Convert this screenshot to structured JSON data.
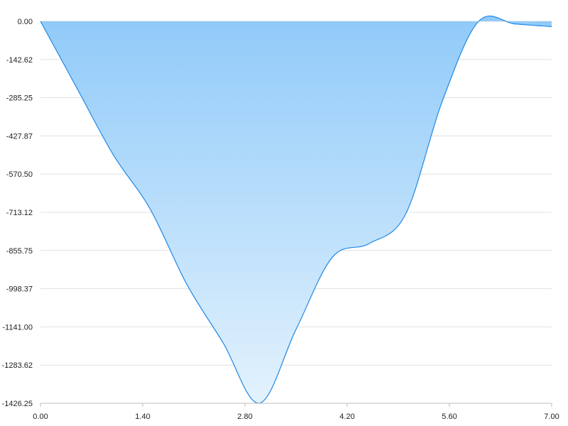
{
  "chart_data": {
    "type": "area",
    "title": "",
    "xlabel": "",
    "ylabel": "",
    "xlim": [
      0,
      7
    ],
    "ylim": [
      -1426.25,
      0
    ],
    "x_ticks": [
      "0.00",
      "1.40",
      "2.80",
      "4.20",
      "5.60",
      "7.00"
    ],
    "y_ticks": [
      "0.00",
      "-142.62",
      "-285.25",
      "-427.87",
      "-570.50",
      "-713.12",
      "-855.75",
      "-998.37",
      "-1141.00",
      "-1283.62",
      "-1426.25"
    ],
    "grid": true,
    "series": [
      {
        "x": [
          0,
          0.5,
          1,
          1.5,
          2,
          2.5,
          3,
          3.5,
          4,
          4.5,
          5,
          5.5,
          6,
          6.5,
          7
        ],
        "values": [
          0,
          -250,
          -500,
          -700,
          -980,
          -1200,
          -1426,
          -1150,
          -880,
          -830,
          -720,
          -300,
          0,
          -10,
          -20
        ]
      }
    ]
  },
  "colors": {
    "line": "#1e88e5",
    "fill_top": "#90caf9",
    "fill_bottom": "#e3f2fd",
    "grid": "#e0e0e0",
    "axis": "#bdbdbd"
  }
}
